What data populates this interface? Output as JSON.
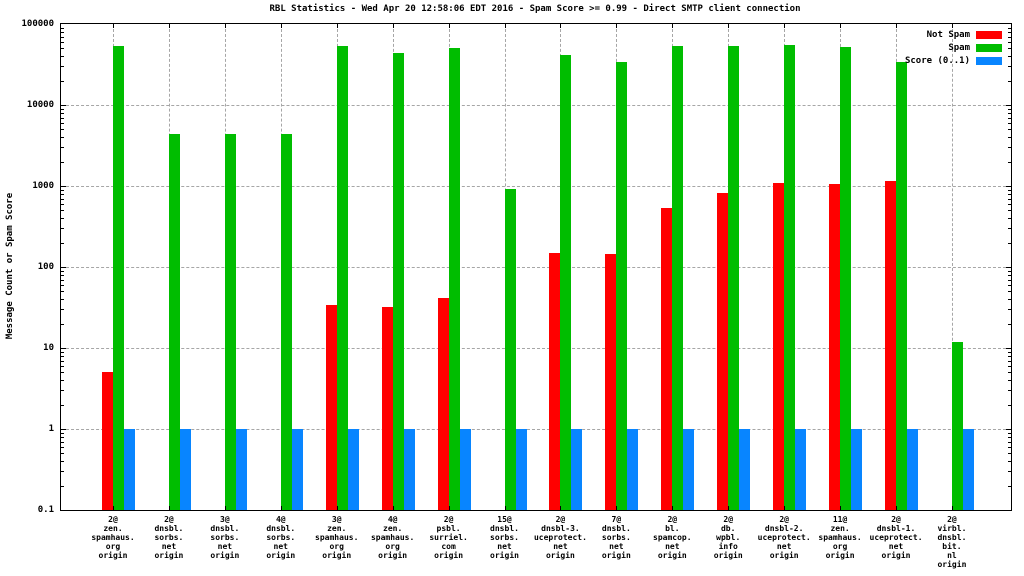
{
  "chart_data": {
    "type": "bar",
    "title": "RBL Statistics - Wed Apr 20 12:58:06 EDT 2016 - Spam Score >= 0.99 - Direct SMTP client connection",
    "ylabel": "Message Count or Spam Score",
    "xlabel": "",
    "y_scale": "log",
    "ylim": [
      0.1,
      100000
    ],
    "y_ticks": [
      "100000",
      "10000",
      "1000",
      "100",
      "10",
      "1",
      "0.1"
    ],
    "grid": true,
    "legend_position": "top-right",
    "colors": {
      "axis": "#000000",
      "grid": "#a6a6a6",
      "background": "#ffffff"
    },
    "categories": [
      [
        "2@",
        "zen.",
        "spamhaus.",
        "org",
        "origin"
      ],
      [
        "2@",
        "dnsbl.",
        "sorbs.",
        "net",
        "origin"
      ],
      [
        "3@",
        "dnsbl.",
        "sorbs.",
        "net",
        "origin"
      ],
      [
        "4@",
        "dnsbl.",
        "sorbs.",
        "net",
        "origin"
      ],
      [
        "3@",
        "zen.",
        "spamhaus.",
        "org",
        "origin"
      ],
      [
        "4@",
        "zen.",
        "spamhaus.",
        "org",
        "origin"
      ],
      [
        "2@",
        "psbl.",
        "surriel.",
        "com",
        "origin"
      ],
      [
        "15@",
        "dnsbl.",
        "sorbs.",
        "net",
        "origin"
      ],
      [
        "2@",
        "dnsbl-3.",
        "uceprotect.",
        "net",
        "origin"
      ],
      [
        "7@",
        "dnsbl.",
        "sorbs.",
        "net",
        "origin"
      ],
      [
        "2@",
        "bl.",
        "spamcop.",
        "net",
        "origin"
      ],
      [
        "2@",
        "db.",
        "wpbl.",
        "info",
        "origin"
      ],
      [
        "2@",
        "dnsbl-2.",
        "uceprotect.",
        "net",
        "origin"
      ],
      [
        "11@",
        "zen.",
        "spamhaus.",
        "org",
        "origin"
      ],
      [
        "2@",
        "dnsbl-1.",
        "uceprotect.",
        "net",
        "origin"
      ],
      [
        "2@",
        "virbl.",
        "dnsbl.",
        "bit.",
        "nl",
        "origin"
      ]
    ],
    "series": [
      {
        "key": "not-spam",
        "name": "Not Spam",
        "color": "#ff0000",
        "values": [
          5,
          null,
          null,
          null,
          34,
          32,
          42,
          null,
          150,
          145,
          530,
          830,
          1100,
          1070,
          1150,
          null
        ]
      },
      {
        "key": "spam",
        "name": "Spam",
        "color": "#00bd00",
        "values": [
          53000,
          4400,
          4400,
          4400,
          53000,
          43500,
          50000,
          930,
          42000,
          34000,
          53000,
          54000,
          55000,
          52000,
          34000,
          12
        ]
      },
      {
        "key": "score",
        "name": "Score (0..1)",
        "color": "#0885ff",
        "values": [
          1,
          1,
          1,
          1,
          1,
          1,
          1,
          1,
          1,
          1,
          1,
          1,
          1,
          1,
          1,
          1
        ]
      }
    ]
  }
}
